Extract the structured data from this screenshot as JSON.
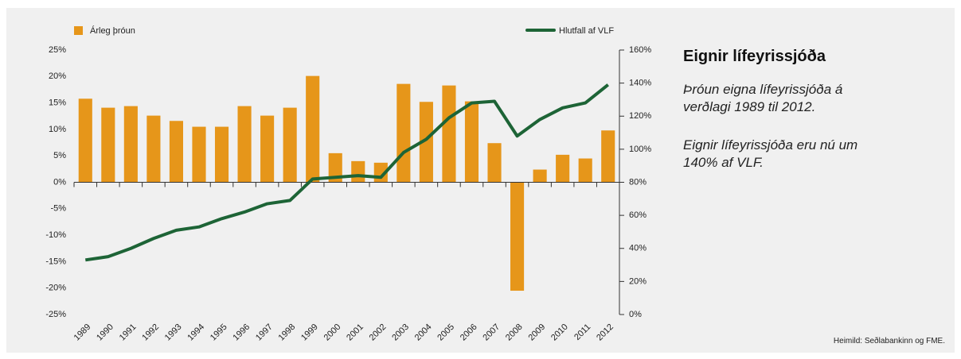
{
  "chart_data": {
    "type": "bar",
    "title": "Eignir lífeyrissjóða",
    "description": [
      "Þróun eigna lífeyrissjóða á verðlagi 1989 til 2012.",
      "Eignir lífeyrissjóða eru nú um 140% af VLF."
    ],
    "source": "Heimild: Seðlabankinn og FME.",
    "categories": [
      "1989",
      "1990",
      "1991",
      "1992",
      "1993",
      "1994",
      "1995",
      "1996",
      "1997",
      "1998",
      "1999",
      "2000",
      "2001",
      "2002",
      "2003",
      "2004",
      "2005",
      "2006",
      "2007",
      "2008",
      "2009",
      "2010",
      "2011",
      "2012"
    ],
    "series": [
      {
        "name": "Árleg þróun",
        "type": "bar",
        "color": "#e6961a",
        "values": [
          15.8,
          14.1,
          14.4,
          12.6,
          11.6,
          10.5,
          10.5,
          14.4,
          12.6,
          14.1,
          20.1,
          5.5,
          4.0,
          3.7,
          18.6,
          15.2,
          18.3,
          15.3,
          7.4,
          -20.5,
          2.4,
          5.2,
          4.5,
          9.8
        ]
      },
      {
        "name": "Hlutfall af VLF",
        "type": "line",
        "axis": "y2",
        "color": "#1d6436",
        "values": [
          33,
          35,
          40,
          46,
          51,
          53,
          58,
          62,
          67,
          69,
          82,
          83,
          84,
          83,
          98,
          106,
          119,
          128,
          129,
          108,
          118,
          125,
          128,
          139
        ]
      }
    ],
    "ylim": [
      -25,
      25
    ],
    "yticks": [
      {
        "value": 25,
        "label": "25%"
      },
      {
        "value": 20,
        "label": "20%"
      },
      {
        "value": 15,
        "label": "15%"
      },
      {
        "value": 10,
        "label": "10%"
      },
      {
        "value": 5,
        "label": "5%"
      },
      {
        "value": 0,
        "label": "0%"
      },
      {
        "value": -5,
        "label": "-5%"
      },
      {
        "value": -10,
        "label": "-10%"
      },
      {
        "value": -15,
        "label": "-15%"
      },
      {
        "value": -20,
        "label": "-20%"
      },
      {
        "value": -25,
        "label": "-25%"
      }
    ],
    "y2lim": [
      0,
      160
    ],
    "y2ticks": [
      {
        "value": 160,
        "label": "160%"
      },
      {
        "value": 140,
        "label": "140%"
      },
      {
        "value": 120,
        "label": "120%"
      },
      {
        "value": 100,
        "label": "100%"
      },
      {
        "value": 80,
        "label": "80%"
      },
      {
        "value": 60,
        "label": "60%"
      },
      {
        "value": 40,
        "label": "40%"
      },
      {
        "value": 20,
        "label": "20%"
      },
      {
        "value": 0,
        "label": "0%"
      }
    ]
  }
}
